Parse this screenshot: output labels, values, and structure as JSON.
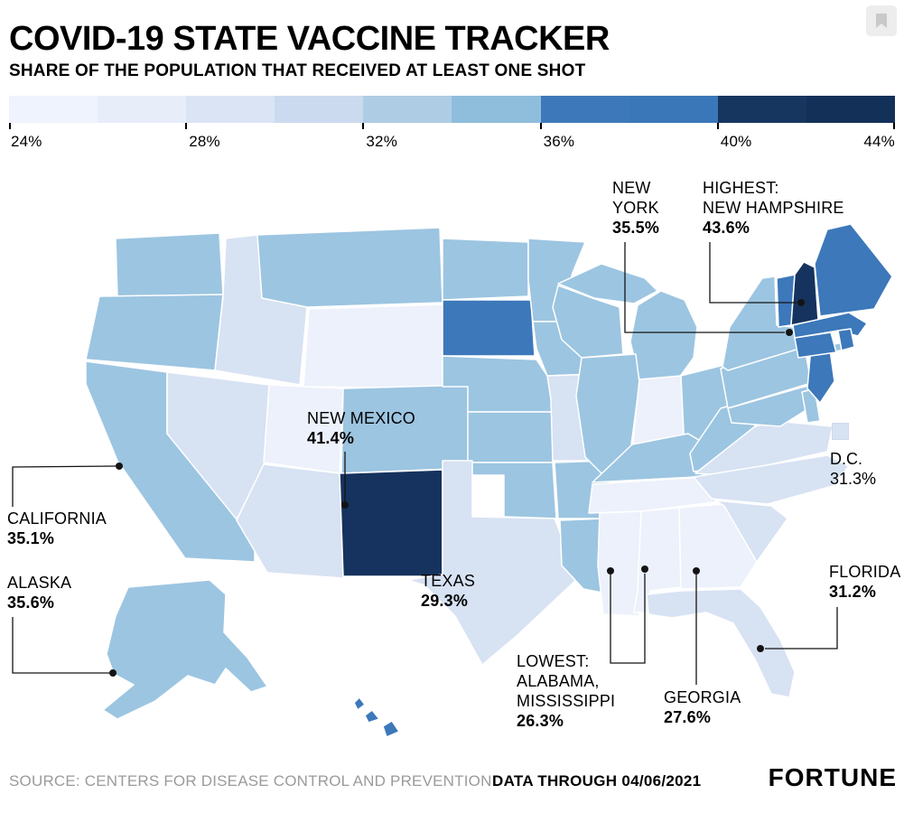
{
  "header": {
    "title": "COVID-19 STATE VACCINE TRACKER",
    "subtitle": "SHARE OF THE POPULATION THAT RECEIVED AT LEAST ONE SHOT"
  },
  "legend": {
    "ticks": [
      "24%",
      "28%",
      "32%",
      "36%",
      "40%",
      "44%"
    ],
    "segments": [
      "#eff3fd",
      "#e7edf9",
      "#dae4f4",
      "#cbdaef",
      "#aecde5",
      "#8fbddc",
      "#3d79ba",
      "#3977b8",
      "#17365f",
      "#133058"
    ]
  },
  "colors": {
    "b1": "#ecf1fb",
    "b2": "#d7e2f3",
    "b3": "#9cc5e1",
    "b4": "#3c78ba",
    "b5": "#15335e"
  },
  "annotations": {
    "new_york": {
      "name": "NEW YORK",
      "value": "35.5%"
    },
    "highest": {
      "prefix": "HIGHEST:",
      "name": "NEW HAMPSHIRE",
      "value": "43.6%"
    },
    "new_mexico": {
      "name": "NEW MEXICO",
      "value": "41.4%"
    },
    "california": {
      "name": "CALIFORNIA",
      "value": "35.1%"
    },
    "alaska": {
      "name": "ALASKA",
      "value": "35.6%"
    },
    "texas": {
      "name": "TEXAS",
      "value": "29.3%"
    },
    "lowest": {
      "prefix": "LOWEST:",
      "name": "ALABAMA, MISSISSIPPI",
      "value": "26.3%"
    },
    "georgia": {
      "name": "GEORGIA",
      "value": "27.6%"
    },
    "florida": {
      "name": "FLORIDA",
      "value": "31.2%"
    },
    "dc": {
      "name": "D.C.",
      "value": "31.3%"
    }
  },
  "footer": {
    "source": "SOURCE: CENTERS FOR DISEASE CONTROL AND PREVENTION",
    "data_through": "DATA THROUGH 04/06/2021",
    "brand": "FORTUNE"
  },
  "chart_data": {
    "type": "heatmap",
    "subtype": "us-choropleth-map",
    "title": "COVID-19 STATE VACCINE TRACKER",
    "subtitle": "SHARE OF THE POPULATION THAT RECEIVED AT LEAST ONE SHOT",
    "unit": "%",
    "scale": {
      "min": 24,
      "max": 44,
      "tick_interval": 4,
      "bin_colors": {
        "24-28": "#ecf1fb",
        "28-32": "#d7e2f3",
        "32-36": "#9cc5e1",
        "36-40": "#3c78ba",
        "40-44": "#15335e"
      }
    },
    "labeled_values": {
      "NEW HAMPSHIRE (HIGHEST)": 43.6,
      "NEW MEXICO": 41.4,
      "ALASKA": 35.6,
      "NEW YORK": 35.5,
      "CALIFORNIA": 35.1,
      "D.C.": 31.3,
      "FLORIDA": 31.2,
      "TEXAS": 29.3,
      "GEORGIA": 27.6,
      "ALABAMA (LOWEST)": 26.3,
      "MISSISSIPPI (LOWEST)": 26.3
    },
    "state_bins_estimated_from_color": {
      "WA": "32-36",
      "OR": "32-36",
      "CA": "32-36",
      "NV": "28-32",
      "ID": "28-32",
      "MT": "32-36",
      "WY": "24-28",
      "UT": "24-28",
      "CO": "32-36",
      "AZ": "28-32",
      "NM": "40-44",
      "ND": "32-36",
      "SD": "36-40",
      "NE": "32-36",
      "KS": "32-36",
      "OK": "32-36",
      "TX": "28-32",
      "MN": "32-36",
      "IA": "32-36",
      "MO": "28-32",
      "AR": "32-36",
      "LA": "32-36",
      "WI": "32-36",
      "MI": "32-36",
      "IL": "32-36",
      "IN": "24-28",
      "OH": "32-36",
      "KY": "32-36",
      "TN": "24-28",
      "MS": "24-28",
      "AL": "24-28",
      "GA": "24-28",
      "FL": "28-32",
      "SC": "28-32",
      "NC": "28-32",
      "VA": "28-32",
      "WV": "32-36",
      "MD": "32-36",
      "DE": "32-36",
      "PA": "32-36",
      "NY": "32-36",
      "NJ": "36-40",
      "CT": "36-40",
      "RI": "36-40",
      "MA": "36-40",
      "VT": "36-40",
      "NH": "40-44",
      "ME": "36-40",
      "AK": "32-36",
      "HI": "36-40",
      "DC": "28-32"
    },
    "legend_position": "top",
    "source": "CENTERS FOR DISEASE CONTROL AND PREVENTION",
    "data_through": "04/06/2021"
  }
}
